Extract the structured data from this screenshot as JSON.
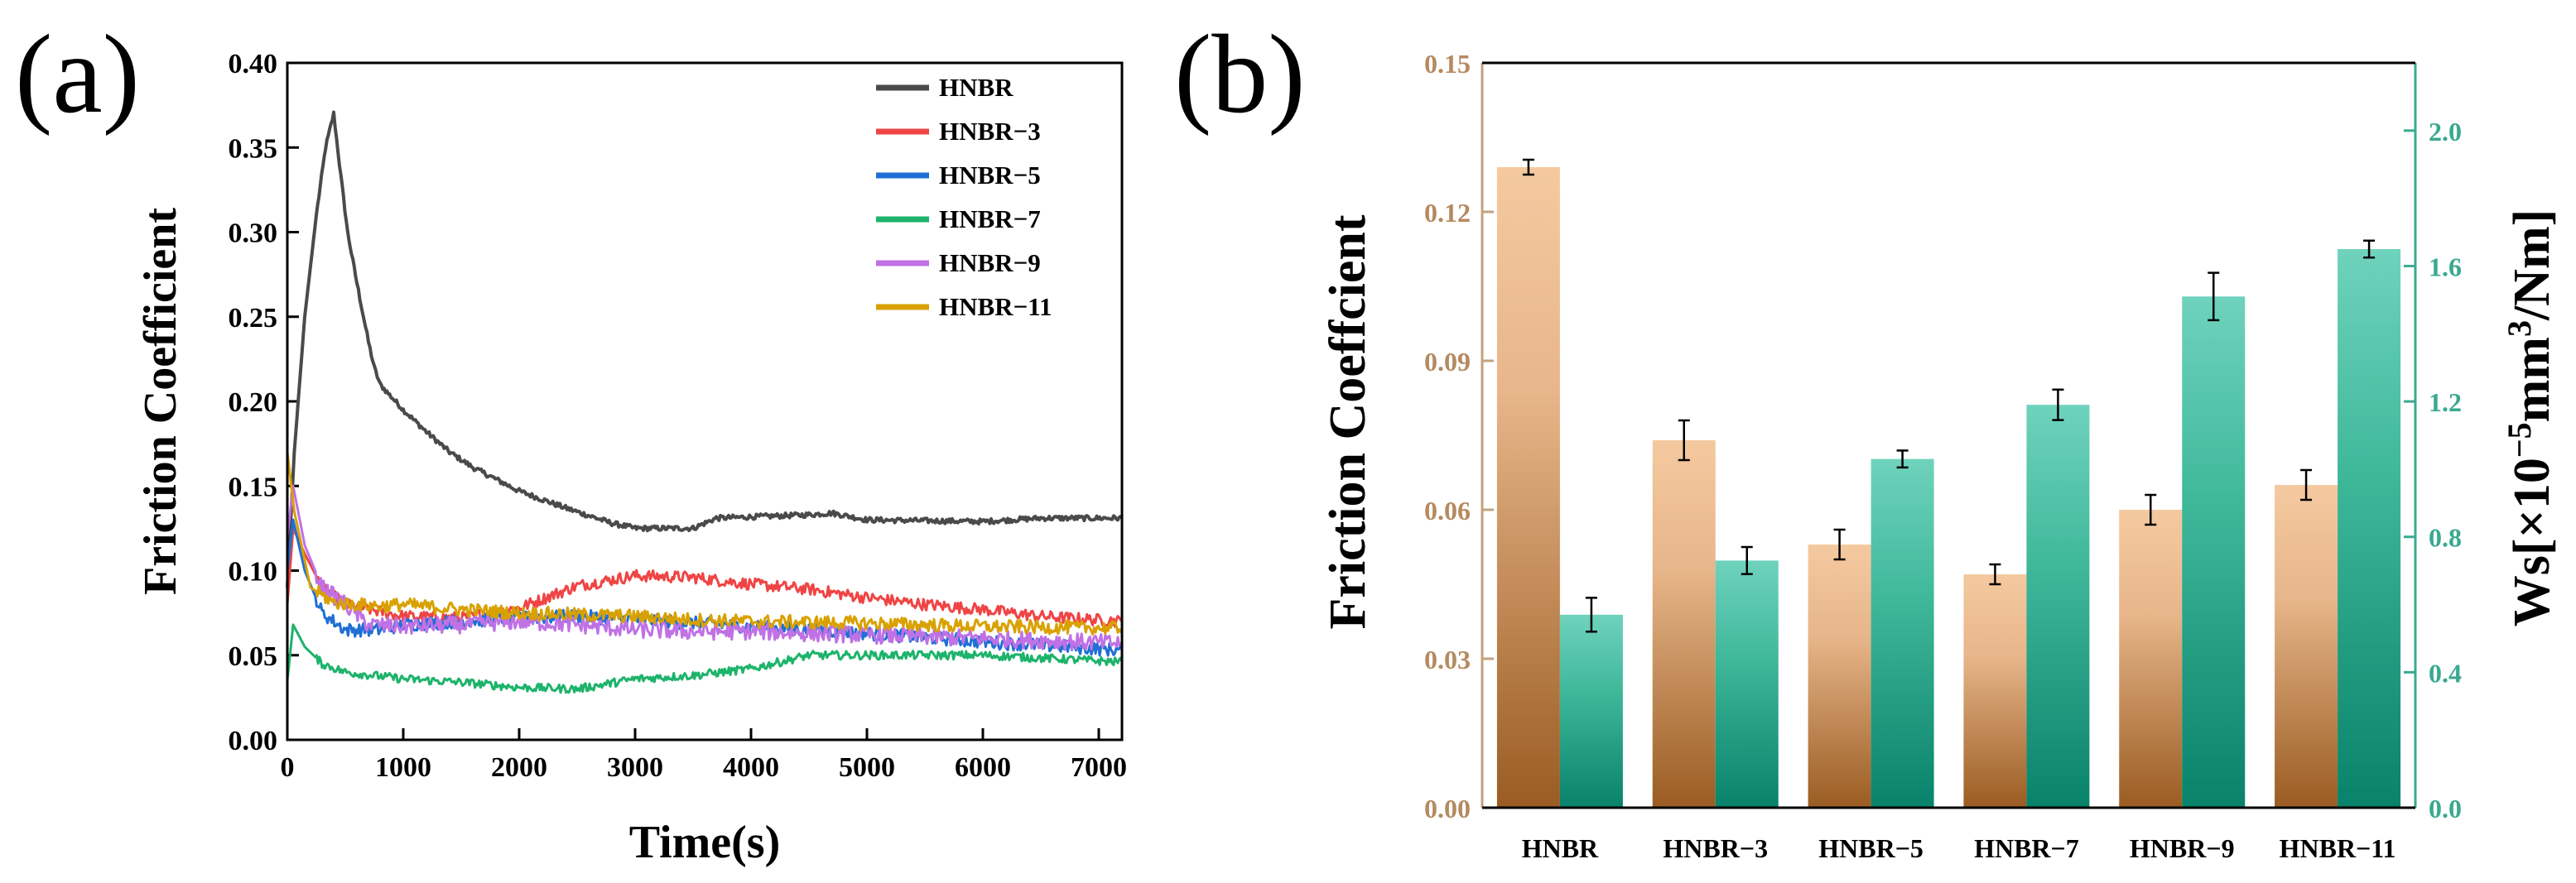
{
  "panels": {
    "a": "(a)",
    "b": "(b)"
  },
  "chart_data": [
    {
      "type": "line",
      "panel": "(a)",
      "xlabel": "Time(s)",
      "ylabel": "Friction Coefficient",
      "xlim": [
        0,
        7200
      ],
      "ylim": [
        0,
        0.4
      ],
      "xticks": [
        "0",
        "1000",
        "2000",
        "3000",
        "4000",
        "5000",
        "6000",
        "7000"
      ],
      "yticks": [
        "0.00",
        "0.05",
        "0.10",
        "0.15",
        "0.20",
        "0.25",
        "0.30",
        "0.35",
        "0.40"
      ],
      "legend_position": "top-right",
      "series": [
        {
          "name": "HNBR",
          "color": "#4a4a4a",
          "noise": 0.0015,
          "points": [
            [
              0,
              0.09
            ],
            [
              60,
              0.17
            ],
            [
              150,
              0.25
            ],
            [
              250,
              0.31
            ],
            [
              330,
              0.35
            ],
            [
              400,
              0.37
            ],
            [
              450,
              0.34
            ],
            [
              520,
              0.3
            ],
            [
              600,
              0.27
            ],
            [
              700,
              0.235
            ],
            [
              750,
              0.22
            ],
            [
              800,
              0.21
            ],
            [
              1000,
              0.195
            ],
            [
              1200,
              0.182
            ],
            [
              1400,
              0.17
            ],
            [
              1600,
              0.161
            ],
            [
              2000,
              0.147
            ],
            [
              2400,
              0.137
            ],
            [
              2800,
              0.128
            ],
            [
              3000,
              0.125
            ],
            [
              3500,
              0.125
            ],
            [
              3700,
              0.131
            ],
            [
              4500,
              0.133
            ],
            [
              4700,
              0.134
            ],
            [
              5000,
              0.13
            ],
            [
              6000,
              0.129
            ],
            [
              6500,
              0.131
            ],
            [
              7200,
              0.131
            ]
          ]
        },
        {
          "name": "HNBR−3",
          "color": "#f04444",
          "noise": 0.0035,
          "points": [
            [
              0,
              0.08
            ],
            [
              50,
              0.125
            ],
            [
              150,
              0.11
            ],
            [
              300,
              0.09
            ],
            [
              500,
              0.08
            ],
            [
              1000,
              0.073
            ],
            [
              1500,
              0.072
            ],
            [
              2000,
              0.078
            ],
            [
              2500,
              0.091
            ],
            [
              3000,
              0.097
            ],
            [
              3500,
              0.096
            ],
            [
              4000,
              0.092
            ],
            [
              4500,
              0.089
            ],
            [
              5000,
              0.084
            ],
            [
              5500,
              0.08
            ],
            [
              6000,
              0.077
            ],
            [
              6500,
              0.073
            ],
            [
              7200,
              0.07
            ]
          ]
        },
        {
          "name": "HNBR−5",
          "color": "#1f6fd6",
          "noise": 0.004,
          "points": [
            [
              0,
              0.1
            ],
            [
              50,
              0.13
            ],
            [
              150,
              0.1
            ],
            [
              300,
              0.075
            ],
            [
              500,
              0.065
            ],
            [
              800,
              0.065
            ],
            [
              1000,
              0.068
            ],
            [
              1500,
              0.07
            ],
            [
              2000,
              0.072
            ],
            [
              2500,
              0.073
            ],
            [
              3000,
              0.071
            ],
            [
              3500,
              0.069
            ],
            [
              4000,
              0.067
            ],
            [
              4500,
              0.065
            ],
            [
              5000,
              0.063
            ],
            [
              6000,
              0.058
            ],
            [
              7200,
              0.053
            ]
          ]
        },
        {
          "name": "HNBR−7",
          "color": "#1db36b",
          "noise": 0.0025,
          "points": [
            [
              0,
              0.035
            ],
            [
              50,
              0.068
            ],
            [
              150,
              0.055
            ],
            [
              300,
              0.045
            ],
            [
              500,
              0.04
            ],
            [
              1000,
              0.036
            ],
            [
              1500,
              0.034
            ],
            [
              2000,
              0.031
            ],
            [
              2500,
              0.03
            ],
            [
              3000,
              0.036
            ],
            [
              3500,
              0.038
            ],
            [
              4000,
              0.042
            ],
            [
              4500,
              0.05
            ],
            [
              5000,
              0.05
            ],
            [
              6000,
              0.05
            ],
            [
              7200,
              0.046
            ]
          ]
        },
        {
          "name": "HNBR−9",
          "color": "#c071e6",
          "noise": 0.005,
          "points": [
            [
              0,
              0.12
            ],
            [
              50,
              0.15
            ],
            [
              150,
              0.115
            ],
            [
              300,
              0.09
            ],
            [
              500,
              0.08
            ],
            [
              700,
              0.068
            ],
            [
              1000,
              0.067
            ],
            [
              1500,
              0.068
            ],
            [
              2000,
              0.07
            ],
            [
              2500,
              0.068
            ],
            [
              3000,
              0.065
            ],
            [
              3500,
              0.064
            ],
            [
              4000,
              0.064
            ],
            [
              5000,
              0.062
            ],
            [
              6000,
              0.06
            ],
            [
              7200,
              0.057
            ]
          ]
        },
        {
          "name": "HNBR−11",
          "color": "#d9a100",
          "noise": 0.004,
          "points": [
            [
              0,
              0.17
            ],
            [
              60,
              0.135
            ],
            [
              200,
              0.09
            ],
            [
              400,
              0.081
            ],
            [
              800,
              0.079
            ],
            [
              1000,
              0.08
            ],
            [
              1500,
              0.077
            ],
            [
              2000,
              0.075
            ],
            [
              2500,
              0.074
            ],
            [
              3000,
              0.073
            ],
            [
              3500,
              0.071
            ],
            [
              4000,
              0.07
            ],
            [
              5000,
              0.069
            ],
            [
              6000,
              0.067
            ],
            [
              7200,
              0.066
            ]
          ]
        }
      ]
    },
    {
      "type": "bar",
      "panel": "(b)",
      "categories": [
        "HNBR",
        "HNBR−3",
        "HNBR−5",
        "HNBR−7",
        "HNBR−9",
        "HNBR−11"
      ],
      "ylabel": "Friction Coeffcient",
      "y2label_prefix": "Ws[×10",
      "y2label_exp1": "−5",
      "y2label_mid": "mm",
      "y2label_exp2": "3",
      "y2label_suffix": "/Nm]",
      "ylim": [
        0,
        0.15
      ],
      "yticks": [
        "0.00",
        "0.03",
        "0.06",
        "0.09",
        "0.12",
        "0.15"
      ],
      "y2lim": [
        0,
        2.2
      ],
      "y2ticks": [
        "0.0",
        "0.4",
        "0.8",
        "1.2",
        "1.6",
        "2.0"
      ],
      "series": [
        {
          "name": "Friction Coeffcient",
          "axis": "left",
          "color_top": "#f5c9a0",
          "color_bottom": "#9a5c22",
          "values": [
            0.129,
            0.074,
            0.053,
            0.047,
            0.06,
            0.065
          ],
          "errors": [
            0.0015,
            0.004,
            0.003,
            0.002,
            0.003,
            0.003
          ]
        },
        {
          "name": "Ws",
          "axis": "right",
          "color_top": "#6fd2bd",
          "color_bottom": "#08826a",
          "values": [
            0.57,
            0.73,
            1.03,
            1.19,
            1.51,
            1.65
          ],
          "errors": [
            0.05,
            0.04,
            0.025,
            0.045,
            0.07,
            0.025
          ]
        }
      ]
    }
  ]
}
